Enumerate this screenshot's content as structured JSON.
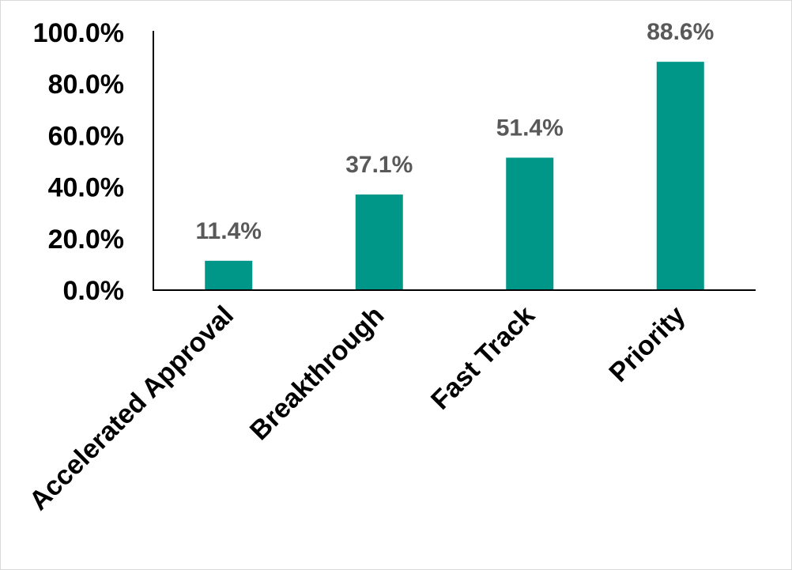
{
  "chart_data": {
    "type": "bar",
    "categories": [
      "Accelerated Approval",
      "Breakthrough",
      "Fast Track",
      "Priority"
    ],
    "values": [
      11.4,
      37.1,
      51.4,
      88.6
    ],
    "data_labels": [
      "11.4%",
      "37.1%",
      "51.4%",
      "88.6%"
    ],
    "yticks": [
      "0.0%",
      "20.0%",
      "40.0%",
      "60.0%",
      "80.0%",
      "100.0%"
    ],
    "ylim": [
      0,
      100
    ],
    "title": "",
    "xlabel": "",
    "ylabel": "",
    "grid": false,
    "legend": "none",
    "bar_color": "#009688"
  }
}
